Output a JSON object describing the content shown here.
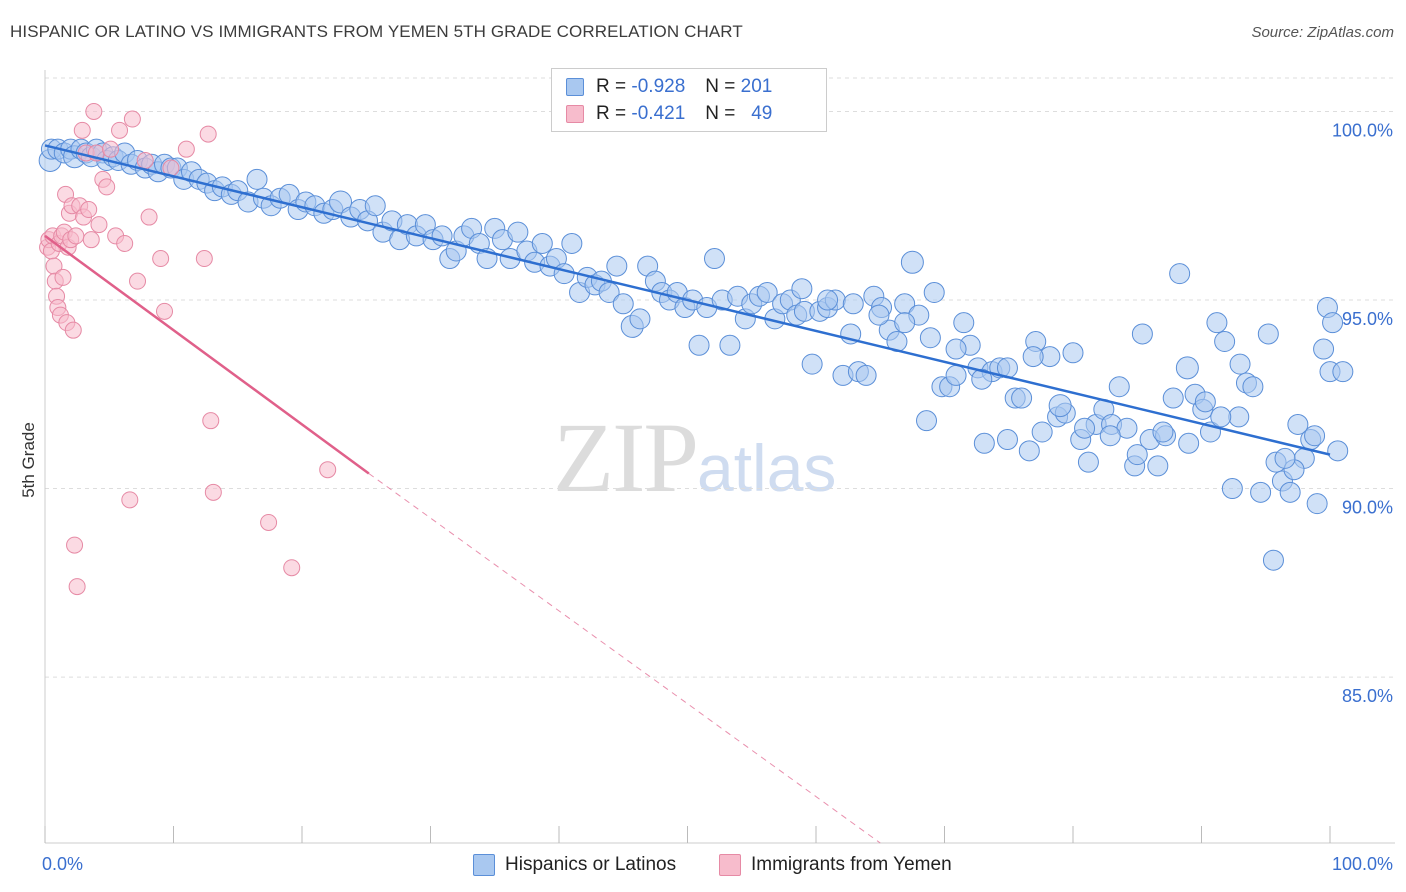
{
  "header": {
    "title": "HISPANIC OR LATINO VS IMMIGRANTS FROM YEMEN 5TH GRADE CORRELATION CHART",
    "source": "Source: ZipAtlas.com"
  },
  "watermark": {
    "zip": "ZIP",
    "atlas": "atlas"
  },
  "legend": {
    "rows": [
      {
        "r_label": "R =",
        "r_value": "-0.928",
        "n_label": "N =",
        "n_value": "201",
        "color": "#a9c8f0",
        "border": "#5b8fd8"
      },
      {
        "r_label": "R =",
        "r_value": "-0.421",
        "n_label": "N =",
        "n_value": "49",
        "color": "#f7bccc",
        "border": "#e68aa5"
      }
    ]
  },
  "bottom_legend": [
    "Hispanics or Latinos",
    "Immigrants from Yemen"
  ],
  "colors": {
    "blue_fill": "#a9c8f0",
    "blue_stroke": "#5b8fd8",
    "blue_line": "#2e6fd0",
    "pink_fill": "#f7bccc",
    "pink_stroke": "#e68aa5",
    "pink_line": "#e0608a",
    "tick": "#3a6fcf",
    "grid": "#dddddd"
  },
  "chart_data": {
    "type": "scatter",
    "title": "HISPANIC OR LATINO VS IMMIGRANTS FROM YEMEN 5TH GRADE CORRELATION CHART",
    "ylabel": "5th Grade",
    "xlabel": "",
    "xlim": [
      0,
      100
    ],
    "ylim": [
      80.6,
      101.1
    ],
    "x_ticks": [
      0,
      10,
      20,
      30,
      40,
      50,
      60,
      70,
      80,
      90,
      100
    ],
    "x_tick_labels": [
      "0.0%",
      "",
      "",
      "",
      "",
      "",
      "",
      "",
      "",
      "",
      "100.0%"
    ],
    "y_ticks": [
      85,
      90,
      95,
      100
    ],
    "y_tick_labels": [
      "85.0%",
      "90.0%",
      "95.0%",
      "100.0%"
    ],
    "grid": true,
    "legend_position": "top-center",
    "series": [
      {
        "name": "Hispanics or Latinos",
        "trend": {
          "x": [
            0,
            100
          ],
          "y": [
            99.1,
            90.9
          ]
        },
        "points": [
          [
            0.4,
            98.7
          ],
          [
            0.5,
            99.0
          ],
          [
            1.0,
            99.0
          ],
          [
            1.5,
            98.9
          ],
          [
            2.0,
            99.0
          ],
          [
            2.3,
            98.8
          ],
          [
            2.8,
            99.0
          ],
          [
            3.2,
            98.9
          ],
          [
            3.6,
            98.8
          ],
          [
            4.0,
            99.0
          ],
          [
            4.5,
            98.9
          ],
          [
            4.8,
            98.7
          ],
          [
            5.3,
            98.8
          ],
          [
            5.7,
            98.7
          ],
          [
            6.2,
            98.9
          ],
          [
            6.7,
            98.6
          ],
          [
            7.2,
            98.7
          ],
          [
            7.8,
            98.5
          ],
          [
            8.3,
            98.6
          ],
          [
            8.8,
            98.4
          ],
          [
            9.3,
            98.6
          ],
          [
            9.8,
            98.5
          ],
          [
            10.3,
            98.5
          ],
          [
            10.8,
            98.2
          ],
          [
            11.4,
            98.4
          ],
          [
            12.0,
            98.2
          ],
          [
            12.6,
            98.1
          ],
          [
            13.2,
            97.9
          ],
          [
            13.8,
            98.0
          ],
          [
            14.5,
            97.8
          ],
          [
            15.0,
            97.9
          ],
          [
            15.8,
            97.6
          ],
          [
            16.5,
            98.2
          ],
          [
            17.0,
            97.7
          ],
          [
            17.6,
            97.5
          ],
          [
            18.3,
            97.7
          ],
          [
            19.0,
            97.8
          ],
          [
            19.7,
            97.4
          ],
          [
            20.3,
            97.6
          ],
          [
            21.0,
            97.5
          ],
          [
            21.7,
            97.3
          ],
          [
            22.4,
            97.4
          ],
          [
            23.0,
            97.6
          ],
          [
            23.8,
            97.2
          ],
          [
            24.5,
            97.4
          ],
          [
            25.1,
            97.1
          ],
          [
            25.7,
            97.5
          ],
          [
            26.3,
            96.8
          ],
          [
            27.0,
            97.1
          ],
          [
            27.6,
            96.6
          ],
          [
            28.2,
            97.0
          ],
          [
            28.9,
            96.7
          ],
          [
            29.6,
            97.0
          ],
          [
            30.2,
            96.6
          ],
          [
            30.9,
            96.7
          ],
          [
            31.5,
            96.1
          ],
          [
            32.0,
            96.3
          ],
          [
            32.6,
            96.7
          ],
          [
            33.2,
            96.9
          ],
          [
            33.8,
            96.5
          ],
          [
            34.4,
            96.1
          ],
          [
            35.0,
            96.9
          ],
          [
            35.6,
            96.6
          ],
          [
            36.2,
            96.1
          ],
          [
            36.8,
            96.8
          ],
          [
            37.5,
            96.3
          ],
          [
            38.1,
            96.0
          ],
          [
            38.7,
            96.5
          ],
          [
            39.3,
            95.9
          ],
          [
            39.8,
            96.1
          ],
          [
            40.4,
            95.7
          ],
          [
            41.0,
            96.5
          ],
          [
            41.6,
            95.2
          ],
          [
            42.2,
            95.6
          ],
          [
            42.8,
            95.4
          ],
          [
            43.3,
            95.5
          ],
          [
            43.9,
            95.2
          ],
          [
            44.5,
            95.9
          ],
          [
            45.0,
            94.9
          ],
          [
            45.7,
            94.3
          ],
          [
            46.3,
            94.5
          ],
          [
            46.9,
            95.9
          ],
          [
            47.5,
            95.5
          ],
          [
            48.0,
            95.2
          ],
          [
            48.6,
            95.0
          ],
          [
            49.2,
            95.2
          ],
          [
            49.8,
            94.8
          ],
          [
            50.4,
            95.0
          ],
          [
            50.9,
            93.8
          ],
          [
            51.5,
            94.8
          ],
          [
            52.1,
            96.1
          ],
          [
            52.7,
            95.0
          ],
          [
            53.3,
            93.8
          ],
          [
            53.9,
            95.1
          ],
          [
            54.5,
            94.5
          ],
          [
            55.0,
            94.9
          ],
          [
            55.6,
            95.1
          ],
          [
            56.2,
            95.2
          ],
          [
            56.8,
            94.5
          ],
          [
            57.4,
            94.9
          ],
          [
            58.0,
            95.0
          ],
          [
            58.5,
            94.6
          ],
          [
            59.1,
            94.7
          ],
          [
            59.7,
            93.3
          ],
          [
            60.3,
            94.7
          ],
          [
            60.9,
            94.8
          ],
          [
            61.5,
            95.0
          ],
          [
            62.1,
            93.0
          ],
          [
            62.7,
            94.1
          ],
          [
            63.3,
            93.1
          ],
          [
            63.9,
            93.0
          ],
          [
            64.5,
            95.1
          ],
          [
            65.1,
            94.8
          ],
          [
            65.7,
            94.2
          ],
          [
            66.3,
            93.9
          ],
          [
            66.9,
            94.9
          ],
          [
            67.5,
            96.0
          ],
          [
            68.0,
            94.6
          ],
          [
            68.6,
            91.8
          ],
          [
            69.2,
            95.2
          ],
          [
            69.8,
            92.7
          ],
          [
            70.4,
            92.7
          ],
          [
            70.9,
            93.0
          ],
          [
            71.5,
            94.4
          ],
          [
            72.0,
            93.8
          ],
          [
            72.6,
            93.2
          ],
          [
            73.1,
            91.2
          ],
          [
            73.7,
            93.1
          ],
          [
            74.3,
            93.2
          ],
          [
            74.9,
            91.3
          ],
          [
            75.5,
            92.4
          ],
          [
            76.0,
            92.4
          ],
          [
            76.6,
            91.0
          ],
          [
            77.1,
            93.9
          ],
          [
            77.6,
            91.5
          ],
          [
            78.2,
            93.5
          ],
          [
            78.8,
            91.9
          ],
          [
            79.4,
            92.0
          ],
          [
            80.0,
            93.6
          ],
          [
            80.6,
            91.3
          ],
          [
            81.2,
            90.7
          ],
          [
            81.8,
            91.7
          ],
          [
            82.4,
            92.1
          ],
          [
            83.0,
            91.7
          ],
          [
            83.6,
            92.7
          ],
          [
            84.2,
            91.6
          ],
          [
            84.8,
            90.6
          ],
          [
            85.4,
            94.1
          ],
          [
            86.0,
            91.3
          ],
          [
            86.6,
            90.6
          ],
          [
            87.2,
            91.4
          ],
          [
            87.8,
            92.4
          ],
          [
            88.3,
            95.7
          ],
          [
            88.9,
            93.2
          ],
          [
            89.5,
            92.5
          ],
          [
            90.1,
            92.1
          ],
          [
            90.7,
            91.5
          ],
          [
            91.2,
            94.4
          ],
          [
            91.8,
            93.9
          ],
          [
            92.4,
            90.0
          ],
          [
            92.9,
            91.9
          ],
          [
            93.5,
            92.8
          ],
          [
            94.0,
            92.7
          ],
          [
            94.6,
            89.9
          ],
          [
            95.2,
            94.1
          ],
          [
            95.8,
            90.7
          ],
          [
            96.3,
            90.2
          ],
          [
            96.9,
            89.9
          ],
          [
            97.5,
            91.7
          ],
          [
            98.0,
            90.8
          ],
          [
            98.5,
            91.3
          ],
          [
            99.0,
            89.6
          ],
          [
            99.5,
            93.7
          ],
          [
            100.0,
            93.1
          ],
          [
            100.6,
            91.0
          ],
          [
            101.0,
            93.1
          ],
          [
            97.2,
            90.5
          ],
          [
            99.8,
            94.8
          ],
          [
            100.2,
            94.4
          ],
          [
            95.6,
            88.1
          ],
          [
            98.8,
            91.4
          ],
          [
            96.5,
            90.8
          ],
          [
            93.0,
            93.3
          ],
          [
            91.5,
            91.9
          ],
          [
            90.3,
            92.3
          ],
          [
            89.0,
            91.2
          ],
          [
            87.0,
            91.5
          ],
          [
            85.0,
            90.9
          ],
          [
            82.9,
            91.4
          ],
          [
            80.9,
            91.6
          ],
          [
            79.0,
            92.2
          ],
          [
            76.9,
            93.5
          ],
          [
            74.9,
            93.2
          ],
          [
            72.9,
            92.9
          ],
          [
            70.9,
            93.7
          ],
          [
            68.9,
            94.0
          ],
          [
            66.9,
            94.4
          ],
          [
            64.9,
            94.6
          ],
          [
            62.9,
            94.9
          ],
          [
            60.9,
            95.0
          ],
          [
            58.9,
            95.3
          ]
        ]
      },
      {
        "name": "Immigrants from Yemen",
        "trend": {
          "x": [
            0,
            25.2
          ],
          "y": [
            96.7,
            90.4
          ]
        },
        "trend_extension": {
          "x": [
            25.2,
            65
          ],
          "y": [
            90.4,
            80.6
          ]
        },
        "points": [
          [
            0.2,
            96.4
          ],
          [
            0.3,
            96.6
          ],
          [
            0.5,
            96.3
          ],
          [
            0.6,
            96.7
          ],
          [
            0.7,
            95.9
          ],
          [
            0.8,
            95.5
          ],
          [
            0.9,
            95.1
          ],
          [
            1.0,
            94.8
          ],
          [
            1.1,
            96.5
          ],
          [
            1.2,
            94.6
          ],
          [
            1.3,
            96.7
          ],
          [
            1.4,
            95.6
          ],
          [
            1.5,
            96.8
          ],
          [
            1.6,
            97.8
          ],
          [
            1.7,
            94.4
          ],
          [
            1.8,
            96.4
          ],
          [
            1.9,
            97.3
          ],
          [
            2.0,
            96.6
          ],
          [
            2.1,
            97.5
          ],
          [
            2.2,
            94.2
          ],
          [
            2.3,
            88.5
          ],
          [
            2.4,
            96.7
          ],
          [
            2.5,
            87.4
          ],
          [
            2.7,
            97.5
          ],
          [
            2.9,
            99.5
          ],
          [
            3.0,
            97.2
          ],
          [
            3.2,
            98.9
          ],
          [
            3.4,
            97.4
          ],
          [
            3.6,
            96.6
          ],
          [
            3.8,
            100.0
          ],
          [
            4.0,
            98.9
          ],
          [
            4.2,
            97.0
          ],
          [
            4.5,
            98.2
          ],
          [
            4.8,
            98.0
          ],
          [
            5.1,
            99.0
          ],
          [
            5.5,
            96.7
          ],
          [
            5.8,
            99.5
          ],
          [
            6.2,
            96.5
          ],
          [
            6.6,
            89.7
          ],
          [
            6.8,
            99.8
          ],
          [
            7.2,
            95.5
          ],
          [
            7.8,
            98.7
          ],
          [
            8.1,
            97.2
          ],
          [
            9.0,
            96.1
          ],
          [
            9.3,
            94.7
          ],
          [
            9.8,
            98.5
          ],
          [
            11.0,
            99.0
          ],
          [
            12.4,
            96.1
          ],
          [
            12.7,
            99.4
          ],
          [
            12.9,
            91.8
          ],
          [
            13.1,
            89.9
          ],
          [
            17.4,
            89.1
          ],
          [
            19.2,
            87.9
          ],
          [
            22.0,
            90.5
          ]
        ]
      }
    ]
  }
}
